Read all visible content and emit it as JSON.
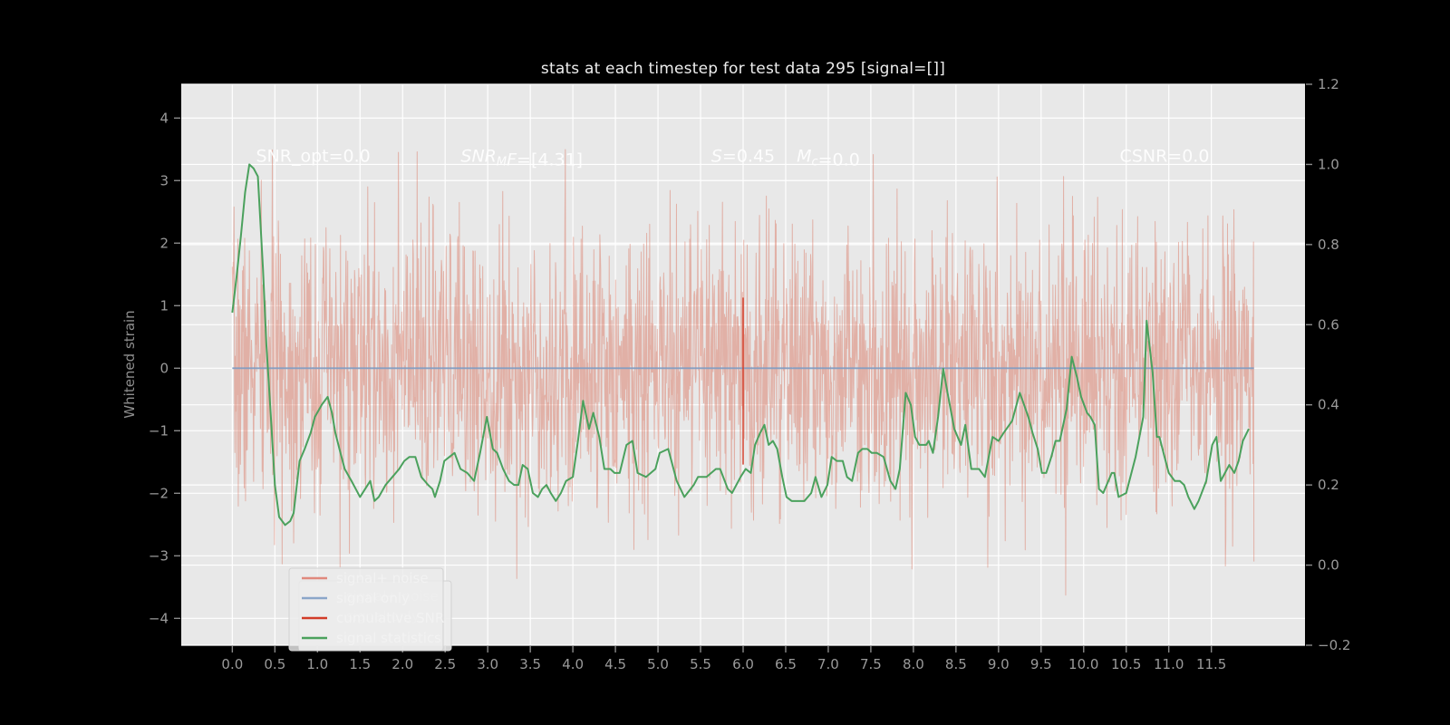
{
  "figure": {
    "background": "#000000",
    "axes_background": "#e8e8e8",
    "grid_color": "#ffffff",
    "tick_label_color": "#9a9a9a",
    "axis_label_color": "#8e8e8e",
    "title_color": "#ededed",
    "annotation_color": "#ffffff"
  },
  "chart_data": {
    "type": "line",
    "title": "stats at each timestep for test data 295 [signal=[]]",
    "left_axis": {
      "label": "Whitened strain",
      "lim": [
        -4.43,
        4.54
      ],
      "tick_values": [
        4,
        3,
        2,
        1,
        0,
        -1,
        -2,
        -3,
        -4
      ],
      "tick_labels": [
        "4",
        "3",
        "2",
        "1",
        "0",
        "−1",
        "−2",
        "−3",
        "−4"
      ]
    },
    "right_axis": {
      "label": "",
      "lim": [
        -0.2,
        1.2
      ],
      "tick_values": [
        1.2,
        1.0,
        0.8,
        0.6,
        0.4,
        0.2,
        0.0,
        -0.2
      ],
      "tick_labels": [
        "1.2",
        "1.0",
        "0.8",
        "0.6",
        "0.4",
        "0.2",
        "0.0",
        "−0.2"
      ]
    },
    "x_axis": {
      "label": "",
      "lim": [
        -0.6,
        12.6
      ],
      "tick_values": [
        0,
        0.5,
        1,
        1.5,
        2,
        2.5,
        3,
        3.5,
        4,
        4.5,
        5,
        5.5,
        6,
        6.5,
        7,
        7.5,
        8,
        8.5,
        9,
        9.5,
        10,
        10.5,
        11,
        11.5
      ],
      "tick_labels": [
        "0.0",
        "0.5",
        "1.0",
        "1.5",
        "2.0",
        "2.5",
        "3.0",
        "3.5",
        "4.0",
        "4.5",
        "5.0",
        "5.5",
        "6.0",
        "6.5",
        "7.0",
        "7.5",
        "8.0",
        "8.5",
        "9.0",
        "9.5",
        "10.0",
        "10.5",
        "11.0",
        "11.5"
      ]
    },
    "annotations": [
      {
        "text": "SNR_opt=0.0",
        "x": 0.95,
        "y": 1.02,
        "segments": [
          {
            "t": "SNR_opt=0.0"
          }
        ]
      },
      {
        "text": "SNR_MF=[4.31]",
        "x": 3.4,
        "y": 1.02,
        "segments": [
          {
            "t": "SNR",
            "it": 1
          },
          {
            "t": "M",
            "it": 1,
            "sub": 1
          },
          {
            "t": "F",
            "it": 1
          },
          {
            "t": "=[4.31]"
          }
        ]
      },
      {
        "text": "S=0.45",
        "x": 6.0,
        "y": 1.02,
        "segments": [
          {
            "t": "S",
            "it": 1
          },
          {
            "t": "=0.45"
          }
        ]
      },
      {
        "text": "Mc=0.0",
        "x": 7.0,
        "y": 1.02,
        "segments": [
          {
            "t": "M",
            "it": 1
          },
          {
            "t": "c",
            "it": 1,
            "sub": 1
          },
          {
            "t": "=0.0"
          }
        ]
      },
      {
        "text": "CSNR=0.0",
        "x": 10.95,
        "y": 1.02,
        "segments": [
          {
            "t": "CSNR=0.0"
          }
        ]
      }
    ],
    "series": [
      {
        "name": "signal+ noise",
        "axis": "left",
        "kind": "noise",
        "color": "#d96c57",
        "opacity": 0.45,
        "legend_color": "#e0897d",
        "noise": {
          "seed": 7,
          "n": 2400,
          "sigma": 1.12,
          "x_start": 0.0,
          "x_end": 12.0
        }
      },
      {
        "name": "signal only",
        "axis": "left",
        "kind": "hline",
        "color": "#7f9cc2",
        "y": 0,
        "x_start": 0.0,
        "x_end": 12.0
      },
      {
        "name": "cumulative SNR",
        "axis": "left",
        "kind": "vsegment",
        "color": "#d23c28",
        "x": 6.0,
        "y_from": 1.13,
        "y_to": -1.54
      },
      {
        "name": "signal statistics",
        "axis": "right",
        "kind": "line",
        "color": "#4ba15d",
        "points": [
          [
            0.0,
            0.63
          ],
          [
            0.05,
            0.72
          ],
          [
            0.1,
            0.82
          ],
          [
            0.15,
            0.93
          ],
          [
            0.2,
            1.0
          ],
          [
            0.25,
            0.99
          ],
          [
            0.3,
            0.97
          ],
          [
            0.36,
            0.74
          ],
          [
            0.4,
            0.55
          ],
          [
            0.45,
            0.38
          ],
          [
            0.5,
            0.2
          ],
          [
            0.55,
            0.12
          ],
          [
            0.62,
            0.1
          ],
          [
            0.68,
            0.11
          ],
          [
            0.72,
            0.13
          ],
          [
            0.79,
            0.26
          ],
          [
            0.85,
            0.29
          ],
          [
            0.92,
            0.33
          ],
          [
            0.97,
            0.37
          ],
          [
            1.05,
            0.4
          ],
          [
            1.12,
            0.42
          ],
          [
            1.17,
            0.38
          ],
          [
            1.21,
            0.33
          ],
          [
            1.27,
            0.28
          ],
          [
            1.32,
            0.24
          ],
          [
            1.4,
            0.21
          ],
          [
            1.45,
            0.19
          ],
          [
            1.5,
            0.17
          ],
          [
            1.56,
            0.19
          ],
          [
            1.62,
            0.21
          ],
          [
            1.67,
            0.16
          ],
          [
            1.72,
            0.17
          ],
          [
            1.8,
            0.2
          ],
          [
            1.88,
            0.22
          ],
          [
            1.96,
            0.24
          ],
          [
            2.02,
            0.26
          ],
          [
            2.08,
            0.27
          ],
          [
            2.15,
            0.27
          ],
          [
            2.22,
            0.22
          ],
          [
            2.3,
            0.2
          ],
          [
            2.35,
            0.19
          ],
          [
            2.38,
            0.17
          ],
          [
            2.44,
            0.21
          ],
          [
            2.49,
            0.26
          ],
          [
            2.55,
            0.27
          ],
          [
            2.61,
            0.28
          ],
          [
            2.68,
            0.24
          ],
          [
            2.76,
            0.23
          ],
          [
            2.84,
            0.21
          ],
          [
            2.91,
            0.28
          ],
          [
            2.99,
            0.37
          ],
          [
            3.06,
            0.29
          ],
          [
            3.11,
            0.28
          ],
          [
            3.18,
            0.24
          ],
          [
            3.25,
            0.21
          ],
          [
            3.31,
            0.2
          ],
          [
            3.36,
            0.2
          ],
          [
            3.41,
            0.25
          ],
          [
            3.47,
            0.24
          ],
          [
            3.53,
            0.18
          ],
          [
            3.59,
            0.17
          ],
          [
            3.64,
            0.19
          ],
          [
            3.69,
            0.2
          ],
          [
            3.74,
            0.18
          ],
          [
            3.8,
            0.16
          ],
          [
            3.86,
            0.18
          ],
          [
            3.92,
            0.21
          ],
          [
            4.0,
            0.22
          ],
          [
            4.06,
            0.31
          ],
          [
            4.12,
            0.41
          ],
          [
            4.16,
            0.37
          ],
          [
            4.19,
            0.34
          ],
          [
            4.24,
            0.38
          ],
          [
            4.31,
            0.32
          ],
          [
            4.37,
            0.24
          ],
          [
            4.44,
            0.24
          ],
          [
            4.49,
            0.23
          ],
          [
            4.55,
            0.23
          ],
          [
            4.63,
            0.3
          ],
          [
            4.7,
            0.31
          ],
          [
            4.76,
            0.23
          ],
          [
            4.86,
            0.22
          ],
          [
            4.97,
            0.24
          ],
          [
            5.02,
            0.28
          ],
          [
            5.12,
            0.29
          ],
          [
            5.22,
            0.21
          ],
          [
            5.31,
            0.17
          ],
          [
            5.42,
            0.2
          ],
          [
            5.47,
            0.22
          ],
          [
            5.57,
            0.22
          ],
          [
            5.68,
            0.24
          ],
          [
            5.73,
            0.24
          ],
          [
            5.82,
            0.19
          ],
          [
            5.87,
            0.18
          ],
          [
            5.97,
            0.22
          ],
          [
            6.03,
            0.24
          ],
          [
            6.09,
            0.23
          ],
          [
            6.14,
            0.3
          ],
          [
            6.2,
            0.33
          ],
          [
            6.25,
            0.35
          ],
          [
            6.3,
            0.3
          ],
          [
            6.35,
            0.31
          ],
          [
            6.4,
            0.29
          ],
          [
            6.46,
            0.22
          ],
          [
            6.51,
            0.17
          ],
          [
            6.57,
            0.16
          ],
          [
            6.64,
            0.16
          ],
          [
            6.72,
            0.16
          ],
          [
            6.8,
            0.18
          ],
          [
            6.85,
            0.22
          ],
          [
            6.92,
            0.17
          ],
          [
            6.99,
            0.2
          ],
          [
            7.04,
            0.27
          ],
          [
            7.1,
            0.26
          ],
          [
            7.17,
            0.26
          ],
          [
            7.22,
            0.22
          ],
          [
            7.28,
            0.21
          ],
          [
            7.35,
            0.28
          ],
          [
            7.4,
            0.29
          ],
          [
            7.46,
            0.29
          ],
          [
            7.51,
            0.28
          ],
          [
            7.57,
            0.28
          ],
          [
            7.65,
            0.27
          ],
          [
            7.73,
            0.21
          ],
          [
            7.79,
            0.19
          ],
          [
            7.84,
            0.24
          ],
          [
            7.91,
            0.43
          ],
          [
            7.97,
            0.4
          ],
          [
            8.02,
            0.32
          ],
          [
            8.07,
            0.3
          ],
          [
            8.15,
            0.3
          ],
          [
            8.18,
            0.31
          ],
          [
            8.23,
            0.28
          ],
          [
            8.29,
            0.37
          ],
          [
            8.35,
            0.49
          ],
          [
            8.41,
            0.42
          ],
          [
            8.48,
            0.34
          ],
          [
            8.56,
            0.3
          ],
          [
            8.61,
            0.35
          ],
          [
            8.68,
            0.24
          ],
          [
            8.77,
            0.24
          ],
          [
            8.84,
            0.22
          ],
          [
            8.93,
            0.32
          ],
          [
            9.0,
            0.31
          ],
          [
            9.06,
            0.33
          ],
          [
            9.16,
            0.36
          ],
          [
            9.25,
            0.43
          ],
          [
            9.3,
            0.4
          ],
          [
            9.35,
            0.37
          ],
          [
            9.4,
            0.33
          ],
          [
            9.46,
            0.29
          ],
          [
            9.51,
            0.23
          ],
          [
            9.56,
            0.23
          ],
          [
            9.62,
            0.27
          ],
          [
            9.67,
            0.31
          ],
          [
            9.72,
            0.31
          ],
          [
            9.8,
            0.39
          ],
          [
            9.86,
            0.52
          ],
          [
            9.92,
            0.47
          ],
          [
            9.97,
            0.42
          ],
          [
            10.04,
            0.38
          ],
          [
            10.08,
            0.37
          ],
          [
            10.13,
            0.35
          ],
          [
            10.18,
            0.19
          ],
          [
            10.23,
            0.18
          ],
          [
            10.33,
            0.23
          ],
          [
            10.36,
            0.23
          ],
          [
            10.41,
            0.17
          ],
          [
            10.5,
            0.18
          ],
          [
            10.61,
            0.27
          ],
          [
            10.7,
            0.37
          ],
          [
            10.74,
            0.61
          ],
          [
            10.81,
            0.48
          ],
          [
            10.86,
            0.32
          ],
          [
            10.89,
            0.32
          ],
          [
            10.95,
            0.27
          ],
          [
            11.0,
            0.23
          ],
          [
            11.07,
            0.21
          ],
          [
            11.13,
            0.21
          ],
          [
            11.18,
            0.2
          ],
          [
            11.23,
            0.17
          ],
          [
            11.3,
            0.14
          ],
          [
            11.35,
            0.16
          ],
          [
            11.44,
            0.21
          ],
          [
            11.51,
            0.3
          ],
          [
            11.56,
            0.32
          ],
          [
            11.61,
            0.21
          ],
          [
            11.66,
            0.23
          ],
          [
            11.71,
            0.25
          ],
          [
            11.77,
            0.23
          ],
          [
            11.82,
            0.26
          ],
          [
            11.87,
            0.31
          ],
          [
            11.94,
            0.34
          ]
        ]
      }
    ],
    "legend": {
      "position": "lower left",
      "entries": [
        {
          "label": "signal+ noise",
          "color": "#e0897d"
        },
        {
          "label": "signal only",
          "color": "#8ba6c9"
        },
        {
          "label": "cumulative SNR",
          "color": "#d23c28"
        },
        {
          "label": "signal statistics",
          "color": "#4ba15d"
        }
      ],
      "ghost_labels": [
        "signal+ noise",
        "signal only"
      ]
    }
  }
}
